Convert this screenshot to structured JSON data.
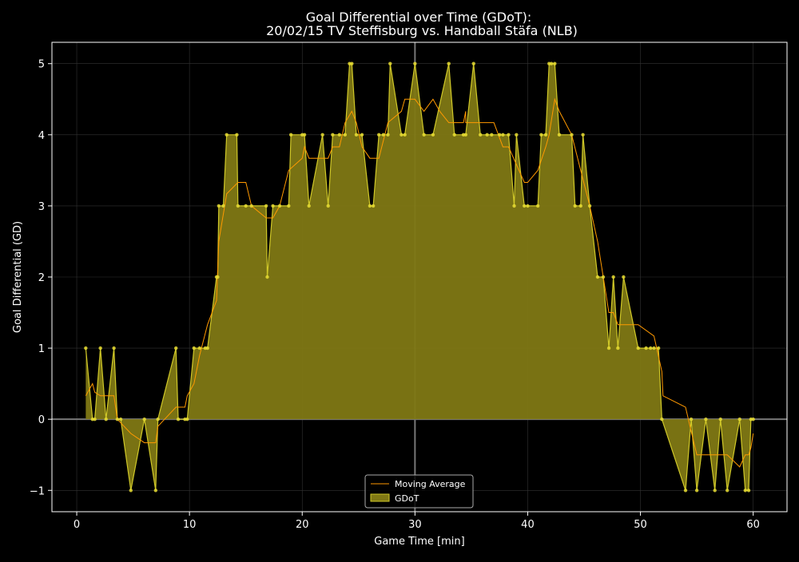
{
  "chart_data": {
    "type": "area",
    "title": "Goal Differential over Time (GDoT):",
    "subtitle": "20/02/15 TV Steffisburg  vs.  Handball Stäfa (NLB)",
    "xlabel": "Game Time [min]",
    "ylabel": "Goal Differential (GD)",
    "xlim": [
      -2.2,
      63.0
    ],
    "ylim": [
      -1.3,
      5.3
    ],
    "xticks": [
      0,
      10,
      20,
      30,
      40,
      50,
      60
    ],
    "yticks": [
      -1,
      0,
      1,
      2,
      3,
      4,
      5
    ],
    "ytick_labels": [
      "−1",
      "0",
      "1",
      "2",
      "3",
      "4",
      "5"
    ],
    "grid": true,
    "halftime_line": 30,
    "legend_position": "lower-center",
    "colors": {
      "background": "#000000",
      "fill": "#807814",
      "line": "#d0c828",
      "points": "#e6dc32",
      "moving_average": "#ff9900",
      "axes": "#ffffff"
    },
    "series": [
      {
        "name": "GDoT",
        "points": [
          [
            0.8,
            1
          ],
          [
            1.4,
            0
          ],
          [
            1.6,
            0
          ],
          [
            2.1,
            1
          ],
          [
            2.6,
            0
          ],
          [
            3.3,
            1
          ],
          [
            3.6,
            0
          ],
          [
            3.9,
            0
          ],
          [
            4.8,
            -1
          ],
          [
            6.0,
            0
          ],
          [
            7.0,
            -1
          ],
          [
            7.2,
            0
          ],
          [
            8.8,
            1
          ],
          [
            9.0,
            0
          ],
          [
            9.6,
            0
          ],
          [
            9.8,
            0
          ],
          [
            10.4,
            1
          ],
          [
            10.9,
            1
          ],
          [
            11.4,
            1
          ],
          [
            11.6,
            1
          ],
          [
            12.4,
            2
          ],
          [
            12.5,
            2
          ],
          [
            12.6,
            3
          ],
          [
            13.0,
            3
          ],
          [
            13.3,
            4
          ],
          [
            14.2,
            4
          ],
          [
            14.3,
            3
          ],
          [
            15.0,
            3
          ],
          [
            15.5,
            3
          ],
          [
            16.8,
            3
          ],
          [
            16.9,
            2
          ],
          [
            17.4,
            3
          ],
          [
            18.0,
            3
          ],
          [
            18.8,
            3
          ],
          [
            19.0,
            4
          ],
          [
            20.0,
            4
          ],
          [
            20.2,
            4
          ],
          [
            20.6,
            3
          ],
          [
            21.8,
            4
          ],
          [
            22.3,
            3
          ],
          [
            22.7,
            4
          ],
          [
            23.3,
            4
          ],
          [
            23.8,
            4
          ],
          [
            24.2,
            5
          ],
          [
            24.4,
            5
          ],
          [
            24.8,
            4
          ],
          [
            25.3,
            4
          ],
          [
            26.0,
            3
          ],
          [
            26.3,
            3
          ],
          [
            26.8,
            4
          ],
          [
            27.2,
            4
          ],
          [
            27.6,
            4
          ],
          [
            27.8,
            5
          ],
          [
            28.8,
            4
          ],
          [
            29.1,
            4
          ],
          [
            30.0,
            5
          ],
          [
            30.8,
            4
          ],
          [
            31.6,
            4
          ],
          [
            33.0,
            5
          ],
          [
            33.5,
            4
          ],
          [
            34.3,
            4
          ],
          [
            34.5,
            4
          ],
          [
            35.2,
            5
          ],
          [
            35.8,
            4
          ],
          [
            36.4,
            4
          ],
          [
            36.8,
            4
          ],
          [
            37.5,
            4
          ],
          [
            37.8,
            4
          ],
          [
            38.3,
            4
          ],
          [
            38.8,
            3
          ],
          [
            39.0,
            4
          ],
          [
            39.7,
            3
          ],
          [
            40.0,
            3
          ],
          [
            40.9,
            3
          ],
          [
            41.2,
            4
          ],
          [
            41.6,
            4
          ],
          [
            41.9,
            5
          ],
          [
            42.1,
            5
          ],
          [
            42.4,
            5
          ],
          [
            42.8,
            4
          ],
          [
            43.9,
            4
          ],
          [
            44.2,
            3
          ],
          [
            44.7,
            3
          ],
          [
            44.9,
            4
          ],
          [
            45.5,
            3
          ],
          [
            46.2,
            2
          ],
          [
            46.7,
            2
          ],
          [
            47.2,
            1
          ],
          [
            47.6,
            2
          ],
          [
            48.0,
            1
          ],
          [
            48.5,
            2
          ],
          [
            49.8,
            1
          ],
          [
            50.5,
            1
          ],
          [
            50.9,
            1
          ],
          [
            51.2,
            1
          ],
          [
            51.6,
            1
          ],
          [
            51.9,
            0
          ],
          [
            54.0,
            -1
          ],
          [
            54.5,
            0
          ],
          [
            55.0,
            -1
          ],
          [
            55.8,
            0
          ],
          [
            56.6,
            -1
          ],
          [
            57.1,
            0
          ],
          [
            57.7,
            -1
          ],
          [
            58.8,
            0
          ],
          [
            59.3,
            -1
          ],
          [
            59.6,
            -1
          ],
          [
            59.8,
            0
          ],
          [
            60.0,
            0
          ]
        ]
      },
      {
        "name": "Moving Average",
        "points": [
          [
            0.8,
            0.33
          ],
          [
            1.4,
            0.5
          ],
          [
            1.6,
            0.38
          ],
          [
            2.1,
            0.33
          ],
          [
            2.6,
            0.33
          ],
          [
            3.3,
            0.33
          ],
          [
            3.6,
            0.0
          ],
          [
            4.8,
            -0.2
          ],
          [
            6.0,
            -0.33
          ],
          [
            7.0,
            -0.33
          ],
          [
            7.2,
            -0.1
          ],
          [
            8.8,
            0.17
          ],
          [
            9.6,
            0.17
          ],
          [
            9.8,
            0.33
          ],
          [
            10.4,
            0.5
          ],
          [
            10.9,
            0.9
          ],
          [
            11.6,
            1.33
          ],
          [
            12.4,
            1.67
          ],
          [
            12.6,
            2.5
          ],
          [
            13.3,
            3.17
          ],
          [
            14.3,
            3.33
          ],
          [
            15.0,
            3.33
          ],
          [
            15.5,
            3.0
          ],
          [
            16.8,
            2.83
          ],
          [
            17.4,
            2.83
          ],
          [
            18.0,
            3.0
          ],
          [
            18.8,
            3.5
          ],
          [
            20.0,
            3.67
          ],
          [
            20.2,
            3.83
          ],
          [
            20.6,
            3.67
          ],
          [
            22.3,
            3.67
          ],
          [
            22.7,
            3.83
          ],
          [
            23.3,
            3.83
          ],
          [
            23.8,
            4.17
          ],
          [
            24.4,
            4.33
          ],
          [
            24.8,
            4.17
          ],
          [
            25.3,
            3.83
          ],
          [
            26.0,
            3.67
          ],
          [
            26.8,
            3.67
          ],
          [
            27.6,
            4.17
          ],
          [
            28.8,
            4.33
          ],
          [
            29.1,
            4.5
          ],
          [
            30.0,
            4.5
          ],
          [
            30.8,
            4.33
          ],
          [
            31.6,
            4.5
          ],
          [
            32.2,
            4.33
          ],
          [
            33.0,
            4.17
          ],
          [
            34.3,
            4.17
          ],
          [
            34.5,
            4.33
          ],
          [
            34.5,
            4.17
          ],
          [
            37.0,
            4.17
          ],
          [
            37.8,
            3.83
          ],
          [
            38.3,
            3.83
          ],
          [
            39.7,
            3.33
          ],
          [
            40.0,
            3.33
          ],
          [
            40.9,
            3.5
          ],
          [
            41.6,
            3.83
          ],
          [
            41.9,
            4.0
          ],
          [
            42.4,
            4.5
          ],
          [
            42.8,
            4.33
          ],
          [
            43.9,
            4.0
          ],
          [
            44.7,
            3.5
          ],
          [
            45.5,
            3.0
          ],
          [
            46.2,
            2.5
          ],
          [
            46.7,
            2.0
          ],
          [
            47.2,
            1.5
          ],
          [
            47.6,
            1.5
          ],
          [
            48.0,
            1.33
          ],
          [
            49.8,
            1.33
          ],
          [
            51.2,
            1.17
          ],
          [
            51.9,
            0.67
          ],
          [
            52.0,
            0.33
          ],
          [
            54.0,
            0.17
          ],
          [
            54.5,
            -0.17
          ],
          [
            55.0,
            -0.5
          ],
          [
            57.7,
            -0.5
          ],
          [
            58.8,
            -0.67
          ],
          [
            59.3,
            -0.5
          ],
          [
            59.6,
            -0.5
          ],
          [
            59.8,
            -0.4
          ],
          [
            60.0,
            -0.2
          ]
        ]
      }
    ]
  }
}
